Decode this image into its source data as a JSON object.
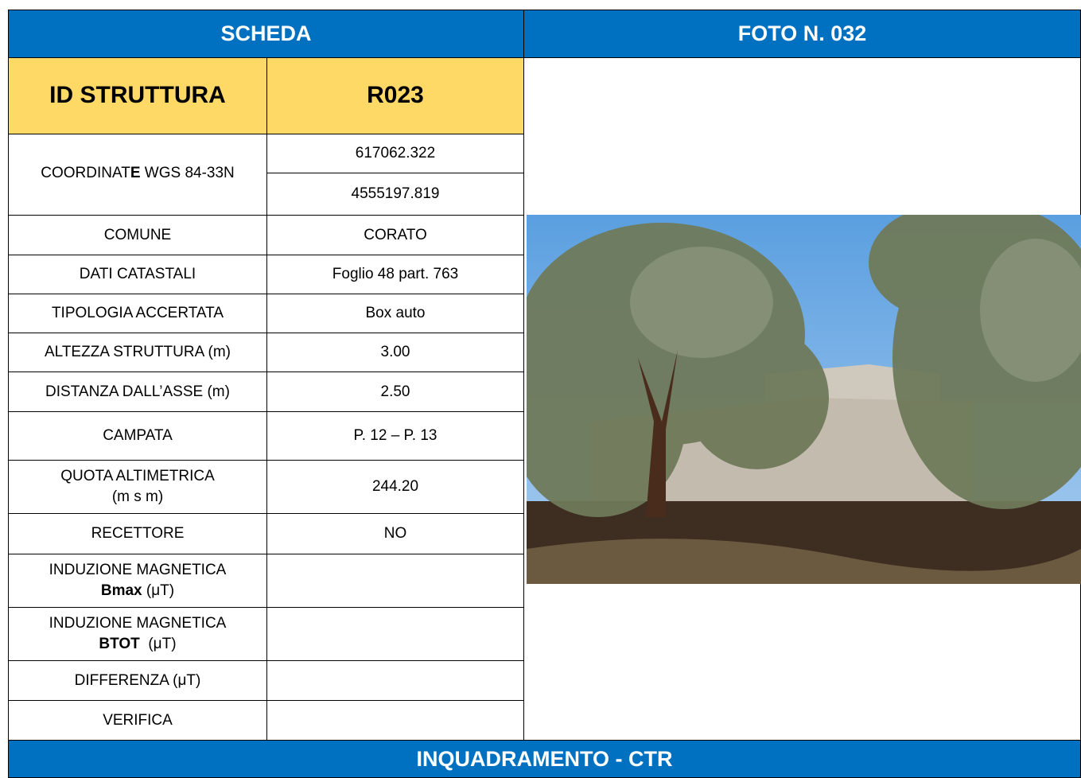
{
  "header": {
    "left": "SCHEDA",
    "right": "FOTO N. 032"
  },
  "id": {
    "label": "ID STRUTTURA",
    "value": "R023"
  },
  "coordinates": {
    "label": [
      "COORDINAT",
      "E",
      " WGS 84-33N"
    ],
    "values": [
      "617062.322",
      "4555197.819"
    ]
  },
  "rows": [
    {
      "label": "COMUNE",
      "value": "CORATO"
    },
    {
      "label": "DATI CATASTALI",
      "value": "Foglio 48 part. 763"
    },
    {
      "label": "TIPOLOGIA ACCERTATA",
      "value": "Box auto"
    },
    {
      "label": "ALTEZZA STRUTTURA (m)",
      "value": "3.00"
    },
    {
      "label": "DISTANZA DALL’ASSE (m)",
      "value": "2.50"
    },
    {
      "label": "CAMPATA",
      "value": "P. 12 – P. 13"
    },
    {
      "label": [
        "QUOTA ALTIMETRICA",
        "(m s m)"
      ],
      "value": "244.20"
    },
    {
      "label": "RECETTORE",
      "value": "NO"
    },
    {
      "label": [
        "INDUZIONE MAGNETICA",
        "Bmax",
        " (μT)"
      ]
    },
    {
      "label": [
        "INDUZIONE MAGNETICA",
        "BTOT",
        "  (μT)"
      ]
    },
    {
      "label": "DIFFERENZA (μT)"
    },
    {
      "label": "VERIFICA"
    }
  ],
  "footer": "INQUADRAMENTO - CTR"
}
